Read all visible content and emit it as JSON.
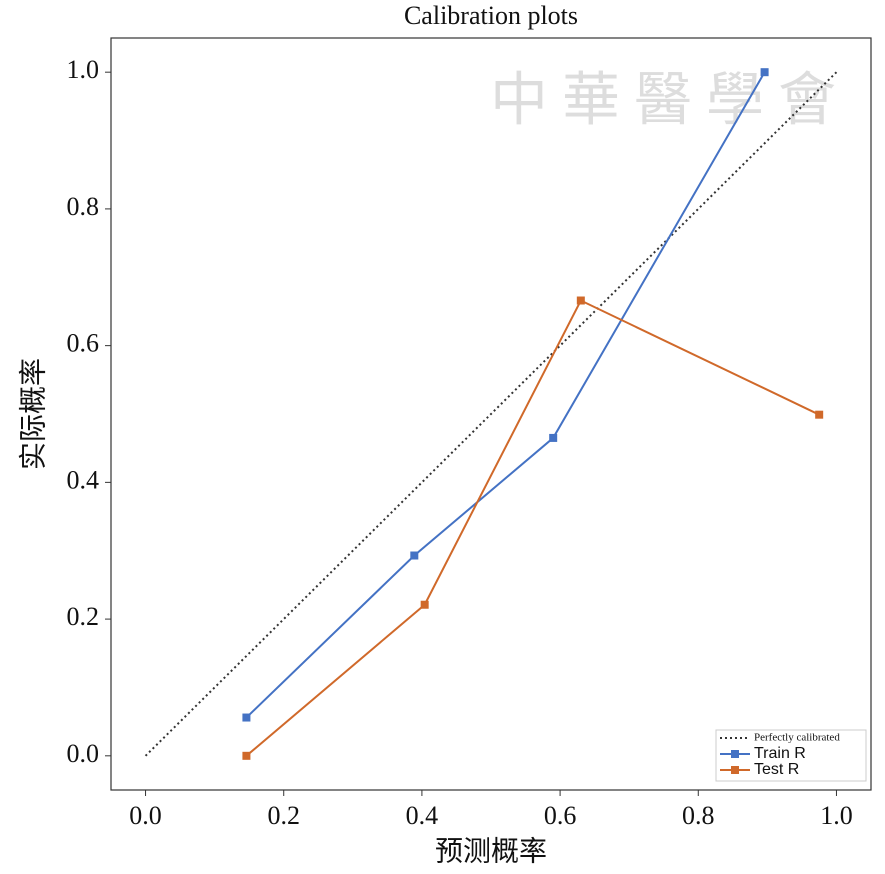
{
  "chart_data": {
    "type": "line",
    "title": "Calibration plots",
    "x_label": "预测概率",
    "y_label": "实际概率",
    "watermark": "中華醫學會",
    "xlim": [
      -0.05,
      1.05
    ],
    "ylim": [
      -0.05,
      1.05
    ],
    "xticks": [
      {
        "value": 0,
        "label": "0.0"
      },
      0.2,
      0.4,
      0.6,
      0.8,
      {
        "value": 1,
        "label": "1.0"
      }
    ],
    "yticks": [
      {
        "value": 0,
        "label": "0.0"
      },
      0.2,
      0.4,
      0.6,
      0.8,
      {
        "value": 1,
        "label": "1.0"
      }
    ],
    "legend": "lower right",
    "series": [
      {
        "name": "Perfectly calibrated",
        "color": "#333333",
        "style": "dotted",
        "x": [
          0,
          1
        ],
        "values": [
          0,
          1
        ]
      },
      {
        "name": "Train R",
        "color": "#4472c4",
        "style": "solid",
        "marker": "square",
        "x": [
          0.146,
          0.389,
          0.59,
          0.896
        ],
        "values": [
          0.056,
          0.293,
          0.465,
          1.0
        ]
      },
      {
        "name": "Test R",
        "color": "#d0692a",
        "style": "solid",
        "marker": "square",
        "x": [
          0.146,
          0.404,
          0.63,
          0.975
        ],
        "values": [
          0.0,
          0.221,
          0.666,
          0.499
        ]
      }
    ]
  }
}
